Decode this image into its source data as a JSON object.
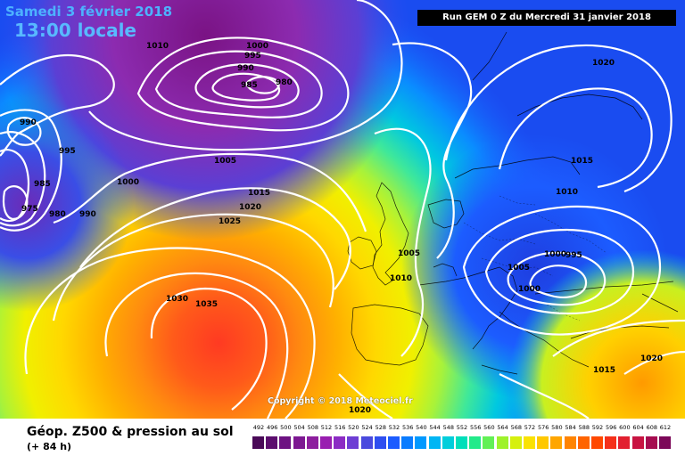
{
  "header": {
    "date": "Samedi 3 février 2018",
    "time": "13:00 locale",
    "run": "Run GEM 0 Z du Mercredi 31 janvier 2018"
  },
  "footer": {
    "product": "Géop. Z500 & pression au sol",
    "lead": "(+ 84 h)",
    "copyright": "Copyright © 2018 Meteociel.fr"
  },
  "legend": {
    "labels": [
      "492",
      "496",
      "500",
      "504",
      "508",
      "512",
      "516",
      "520",
      "524",
      "528",
      "532",
      "536",
      "540",
      "544",
      "548",
      "552",
      "556",
      "560",
      "564",
      "568",
      "572",
      "576",
      "580",
      "584",
      "588",
      "592",
      "596",
      "600",
      "604",
      "608",
      "612"
    ],
    "colors": [
      "#4a0a58",
      "#5c0d6e",
      "#6d1282",
      "#7d1892",
      "#8d1e9e",
      "#991eb0",
      "#8c2cc4",
      "#6e3ed4",
      "#4a4ade",
      "#2f4ff0",
      "#1c5cff",
      "#0a7cff",
      "#0099ff",
      "#00b6f4",
      "#00cedb",
      "#00dfba",
      "#22ea8a",
      "#62f056",
      "#9ef22c",
      "#d6f00e",
      "#fae202",
      "#ffc800",
      "#ffa600",
      "#ff8400",
      "#ff6400",
      "#ff4800",
      "#f5301a",
      "#e22030",
      "#c81442",
      "#a60c50",
      "#7c0858"
    ]
  },
  "isobar_labels": [
    "1010",
    "1000",
    "995",
    "990",
    "985",
    "980",
    "990",
    "995",
    "985",
    "975",
    "980",
    "990",
    "1000",
    "1005",
    "1015",
    "1020",
    "1025",
    "1030",
    "1035",
    "1005",
    "1010",
    "1020",
    "1015",
    "1010",
    "1005",
    "1000",
    "995",
    "1000",
    "1015",
    "1020",
    "1020"
  ]
}
